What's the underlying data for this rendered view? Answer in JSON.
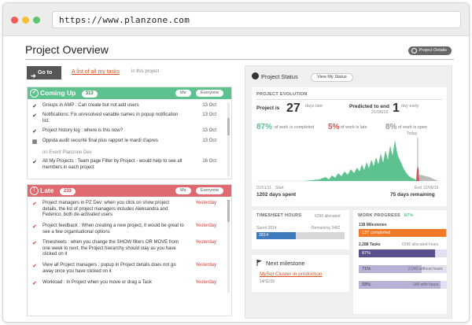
{
  "browser": {
    "url": "https://www.planzone.com"
  },
  "page": {
    "title": "Project Overview",
    "details_button": "Project Details"
  },
  "goto": {
    "button": "Go to",
    "link": "A list of all my tasks",
    "scope": "in this project"
  },
  "coming_up": {
    "title": "Coming Up",
    "count": "313",
    "me": "Me",
    "everyone": "Everyone",
    "items": [
      {
        "icon": "check",
        "text": "Groups in AMP : Can create but not add users",
        "date": "13 Oct"
      },
      {
        "icon": "check",
        "text": "Notifications: Fix unresolved variable names in popup notification list.",
        "date": "13 Oct"
      },
      {
        "icon": "check",
        "text": "Project history log : where is this now?",
        "date": "13 Oct"
      },
      {
        "icon": "calendar",
        "text": "Oppida audit securité final plus rapport le mardi d'apres",
        "sub": "on Event Planzone Dev",
        "date": "13 Oct"
      },
      {
        "icon": "check",
        "text": "All My Projects : Team page Filter by Project - would help to see all members in each project",
        "date": "16 Oct"
      }
    ]
  },
  "late": {
    "title": "Late",
    "count": "233",
    "me": "Me",
    "everyone": "Everyone",
    "items": [
      {
        "text": "Project managers in PZ Dev: when you click on show project details, the list of project managers includes Aleksandra and Federico, both de-activated users",
        "date": "Yesterday"
      },
      {
        "text": "Project feedback : When creating a new project, it would be great to see a few organisational options",
        "date": "Yesterday"
      },
      {
        "text": "Timesheets : when you change the SHOW filters OR MOVE from one week to next, the Project hierarchy should stay as you have clicked on it",
        "date": "Yesterday"
      },
      {
        "text": "View all Project managers : popup in Project details does not go away once you have clicked on it",
        "date": "Yesterday"
      },
      {
        "text": "Workload : In Project when you move or drag a Task",
        "date": "Yesterday"
      }
    ]
  },
  "status": {
    "title": "Project Status",
    "my_status": "View My Status",
    "evolution": {
      "label": "PROJECT EVOLUTION",
      "project_is": "Project is",
      "late_num": "27",
      "late_unit": "days late",
      "predicted": "Predicted to end",
      "predicted_num": "1",
      "predicted_unit": "day early",
      "predicted_date": "21/06/16",
      "pct_completed": "87%",
      "pct_completed_label": "of work is completed",
      "pct_late": "5%",
      "pct_late_label": "of work is late",
      "pct_open": "8%",
      "pct_open_label": "of work is open",
      "today": "Today",
      "start_date": "01/01/11",
      "start_label": "Start",
      "days_spent": "1202 days spent",
      "end_label": "End",
      "end_date": "22/06/16",
      "days_remaining": "75 days remaining",
      "colors": {
        "completed": "#5dc28d",
        "late": "#d9534f",
        "open": "#bbbbbb"
      }
    },
    "timesheet": {
      "label": "TIMESHEET HOURS",
      "allocated": "6296 allocated",
      "spent_label": "Spent 2814",
      "remaining_label": "Remaining 3482",
      "spent_value": "2814",
      "spent_fraction": 0.447
    },
    "work_progress": {
      "label": "WORK PROGRESS",
      "pct": "87%",
      "milestones_label": "138 Milestones",
      "milestones_completed": "137 completed",
      "milestones_fraction": 0.993,
      "tasks_label": "2,288 Tasks",
      "tasks_allocated": "6296 allocated hours",
      "rows": [
        {
          "value": "87%",
          "fraction": 0.87,
          "side": "",
          "color": "#5a4e8c"
        },
        {
          "value": "71%",
          "fraction": 0.71,
          "side": "2,043 without hours",
          "color": "#b9b0d6"
        },
        {
          "value": "93%",
          "fraction": 0.93,
          "side": "245 with hours",
          "color": "#b9b0d6"
        }
      ]
    },
    "milestone": {
      "title": "Next milestone",
      "link": "MySql Cluster in production",
      "date": "14/11/15"
    }
  }
}
